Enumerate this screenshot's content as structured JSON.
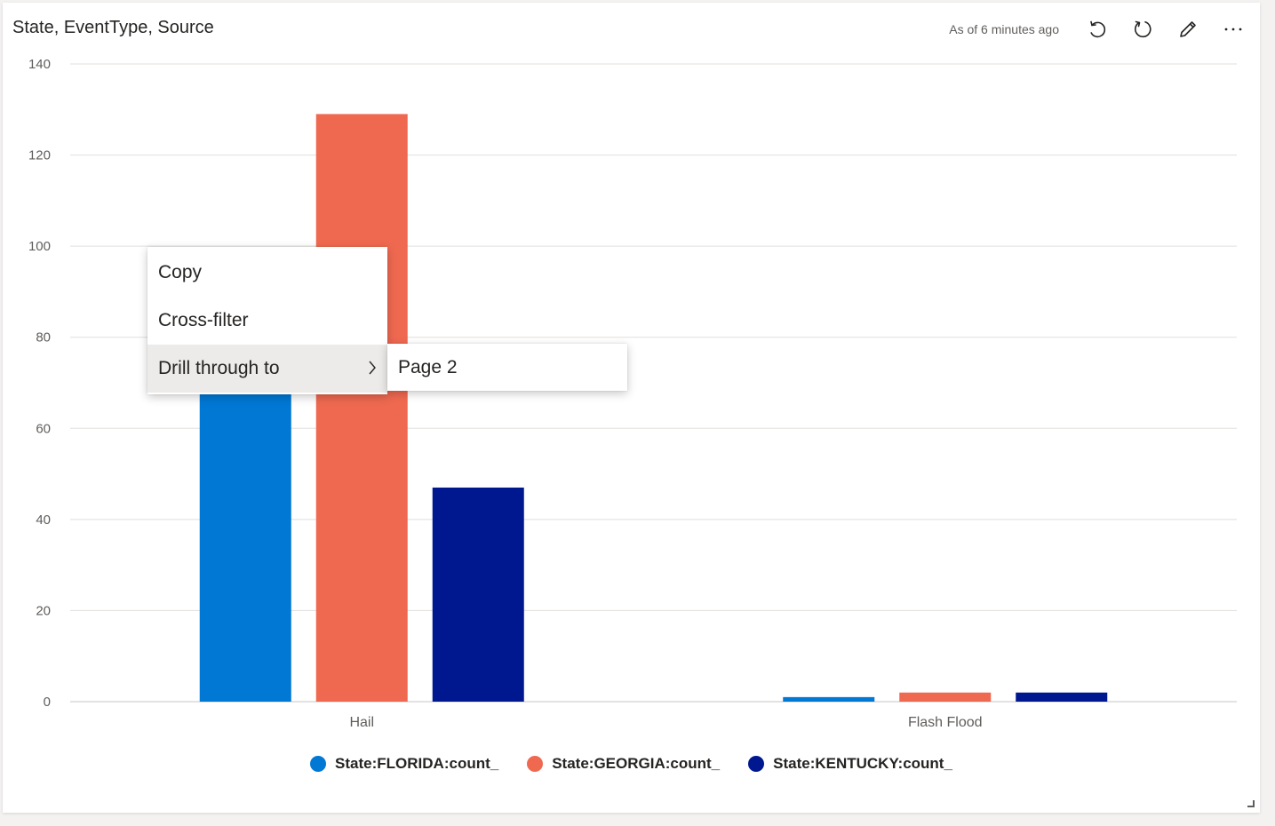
{
  "header": {
    "title": "State, EventType, Source",
    "timestamp": "As of 6 minutes ago",
    "icons": [
      "undo-icon",
      "refresh-icon",
      "edit-icon",
      "more-options-icon"
    ]
  },
  "chart_data": {
    "type": "bar",
    "categories": [
      "Hail",
      "Flash Flood"
    ],
    "series": [
      {
        "name": "State:FLORIDA:count_",
        "color": "#0078d4",
        "values": [
          69,
          1
        ]
      },
      {
        "name": "State:GEORGIA:count_",
        "color": "#ef6950",
        "values": [
          129,
          2
        ]
      },
      {
        "name": "State:KENTUCKY:count_",
        "color": "#00188f",
        "values": [
          47,
          2
        ]
      }
    ],
    "ylim": [
      0,
      140
    ],
    "yticks": [
      0,
      20,
      40,
      60,
      80,
      100,
      120,
      140
    ],
    "grid": true,
    "legend_position": "bottom"
  },
  "context_menu": {
    "items": [
      {
        "label": "Copy"
      },
      {
        "label": "Cross-filter"
      },
      {
        "label": "Drill through to",
        "has_submenu": true
      }
    ],
    "submenu": {
      "items": [
        {
          "label": "Page 2"
        }
      ]
    }
  }
}
